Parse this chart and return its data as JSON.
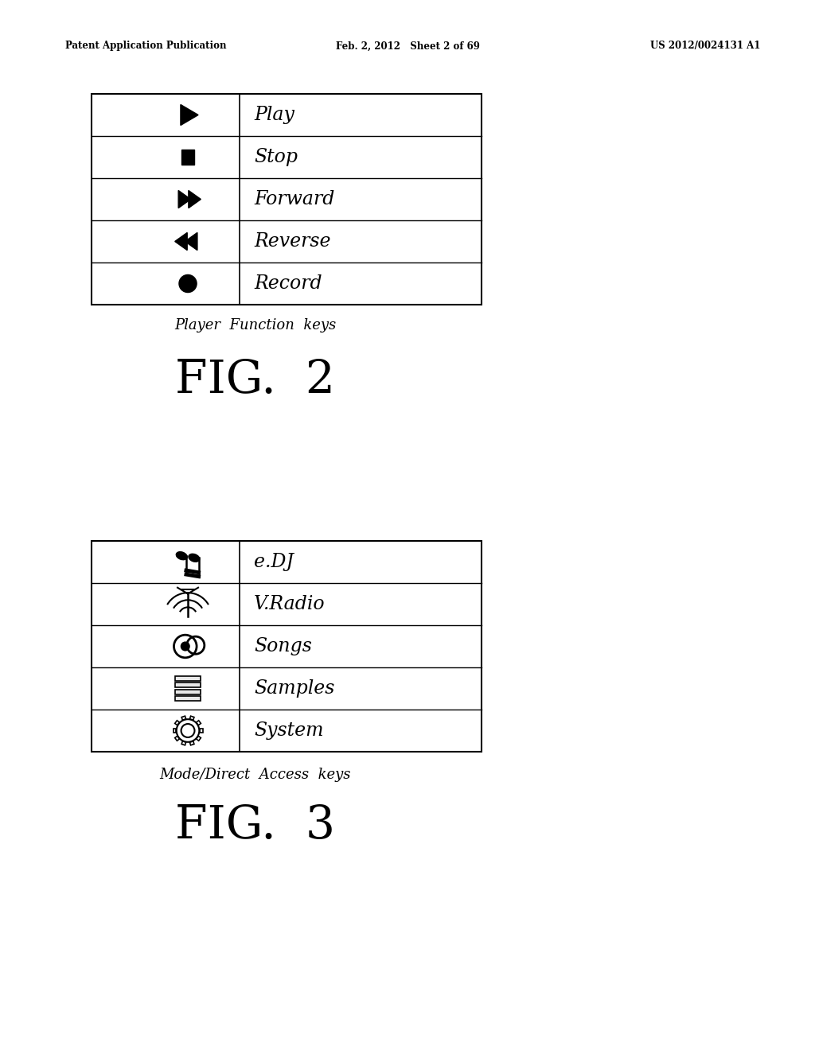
{
  "bg_color": "#ffffff",
  "header_left": "Patent Application Publication",
  "header_mid": "Feb. 2, 2012   Sheet 2 of 69",
  "header_right": "US 2012/0024131 A1",
  "fig2_caption": "Player  Function  keys",
  "fig2_label": "FIG.  2",
  "fig3_caption": "Mode/Direct  Access  keys",
  "fig3_label": "FIG.  3",
  "table1_rows": [
    "Play",
    "Stop",
    "Forward",
    "Reverse",
    "Record"
  ],
  "table2_rows": [
    "e.DJ",
    "V.Radio",
    "Songs",
    "Samples",
    "System"
  ]
}
